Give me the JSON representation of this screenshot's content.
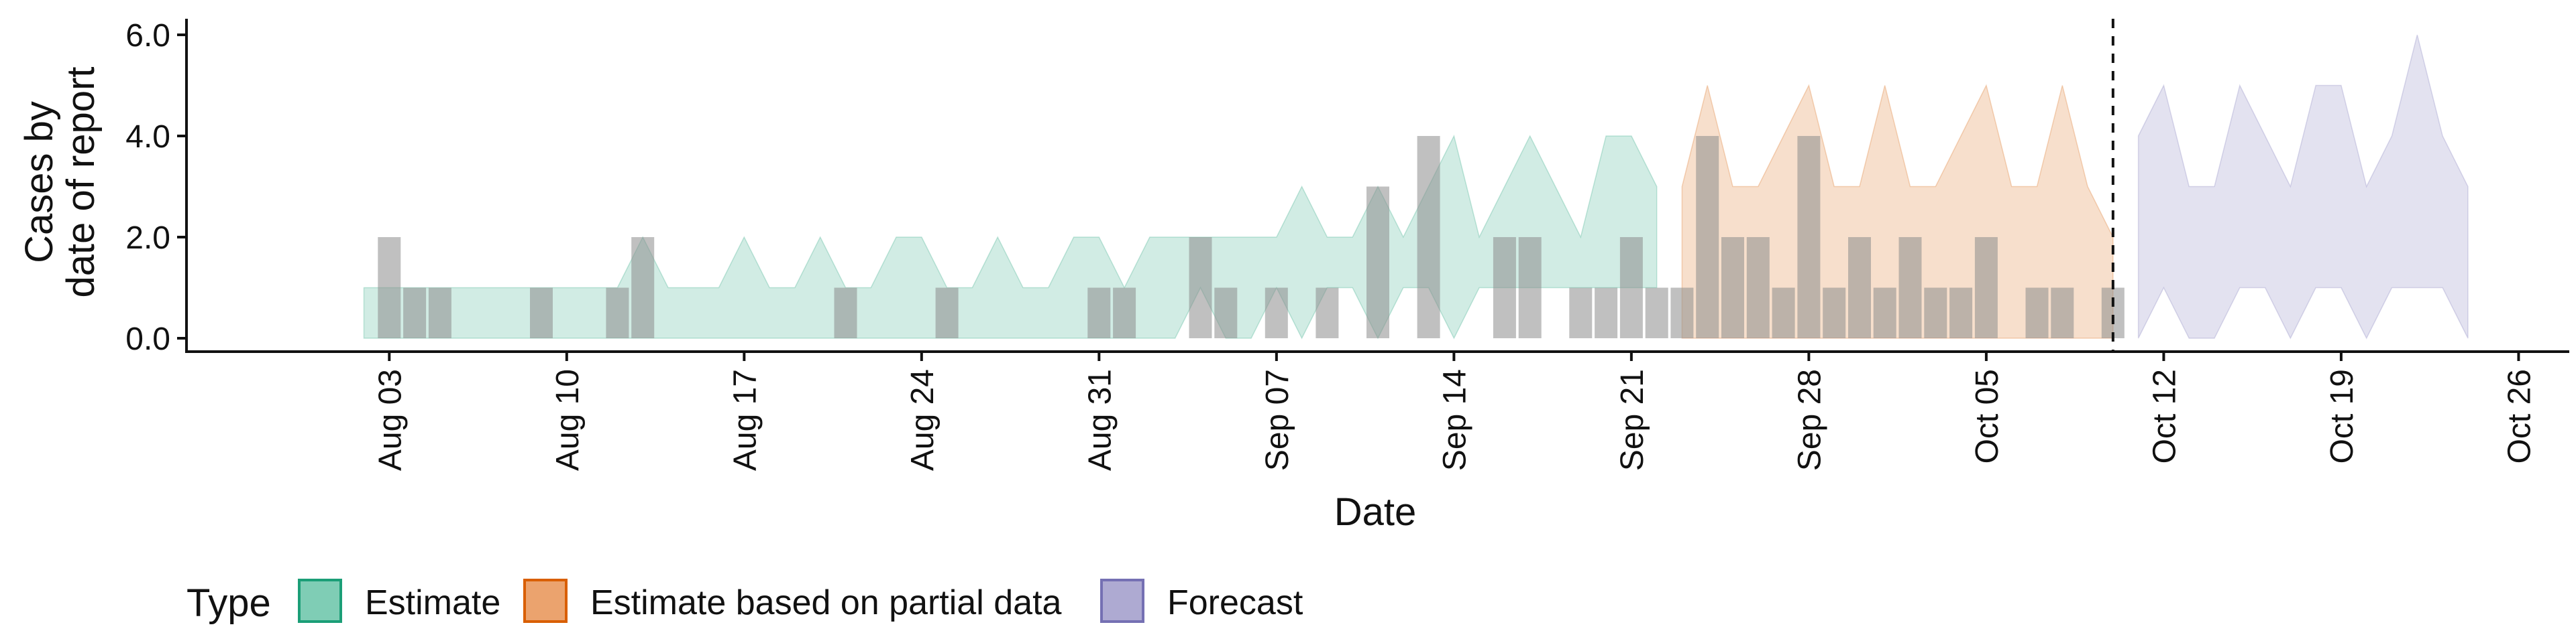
{
  "chart_data": {
    "type": "area",
    "xlabel": "Date",
    "ylabel_lines": [
      "Cases by",
      "date of report"
    ],
    "y_ticks": [
      0,
      2,
      4,
      6
    ],
    "y_tick_labels": [
      "0.0",
      "2.0",
      "4.0",
      "6.0"
    ],
    "ylim": [
      0,
      6.3
    ],
    "xlim": [
      "2020-07-26",
      "2020-10-28"
    ],
    "x_ticks": [
      "2020-08-03",
      "2020-08-10",
      "2020-08-17",
      "2020-08-24",
      "2020-08-31",
      "2020-09-07",
      "2020-09-14",
      "2020-09-21",
      "2020-09-28",
      "2020-10-05",
      "2020-10-12",
      "2020-10-19",
      "2020-10-26"
    ],
    "x_tick_labels": [
      "Aug 03",
      "Aug 10",
      "Aug 17",
      "Aug 24",
      "Aug 31",
      "Sep 07",
      "Sep 14",
      "Sep 21",
      "Sep 28",
      "Oct 05",
      "Oct 12",
      "Oct 19",
      "Oct 26"
    ],
    "forecast_date": "2020-10-10",
    "legend": {
      "title": "Type",
      "placement": "bottom-left",
      "items": [
        {
          "label": "Estimate",
          "fill": "#7fcdb5",
          "stroke": "#1b9e77"
        },
        {
          "label": "Estimate based on partial data",
          "fill": "#eba36e",
          "stroke": "#d95f02"
        },
        {
          "label": "Forecast",
          "fill": "#aeaad2",
          "stroke": "#7570b3"
        }
      ]
    },
    "colors": {
      "estimate": "#1b9e77",
      "partial": "#d95f02",
      "forecast": "#7570b3",
      "bars": "#8c8c8c"
    },
    "observed_cases": {
      "dates": [
        "2020-08-03",
        "2020-08-04",
        "2020-08-05",
        "2020-08-09",
        "2020-08-12",
        "2020-08-13",
        "2020-08-21",
        "2020-08-25",
        "2020-08-31",
        "2020-09-01",
        "2020-09-04",
        "2020-09-05",
        "2020-09-07",
        "2020-09-09",
        "2020-09-11",
        "2020-09-13",
        "2020-09-16",
        "2020-09-17",
        "2020-09-19",
        "2020-09-20",
        "2020-09-21",
        "2020-09-22",
        "2020-09-23",
        "2020-09-24",
        "2020-09-25",
        "2020-09-26",
        "2020-09-27",
        "2020-09-28",
        "2020-09-29",
        "2020-09-30",
        "2020-10-01",
        "2020-10-02",
        "2020-10-03",
        "2020-10-04",
        "2020-10-05",
        "2020-10-07",
        "2020-10-08",
        "2020-10-10"
      ],
      "values": [
        2,
        1,
        1,
        1,
        1,
        2,
        1,
        1,
        1,
        1,
        2,
        1,
        1,
        1,
        3,
        4,
        2,
        2,
        1,
        1,
        2,
        1,
        1,
        4,
        2,
        2,
        1,
        4,
        1,
        2,
        1,
        2,
        1,
        1,
        2,
        1,
        1,
        1
      ]
    },
    "series": [
      {
        "name": "Estimate",
        "dates": [
          "2020-08-02",
          "2020-08-03",
          "2020-08-04",
          "2020-08-05",
          "2020-08-06",
          "2020-08-07",
          "2020-08-08",
          "2020-08-09",
          "2020-08-10",
          "2020-08-11",
          "2020-08-12",
          "2020-08-13",
          "2020-08-14",
          "2020-08-15",
          "2020-08-16",
          "2020-08-17",
          "2020-08-18",
          "2020-08-19",
          "2020-08-20",
          "2020-08-21",
          "2020-08-22",
          "2020-08-23",
          "2020-08-24",
          "2020-08-25",
          "2020-08-26",
          "2020-08-27",
          "2020-08-28",
          "2020-08-29",
          "2020-08-30",
          "2020-08-31",
          "2020-09-01",
          "2020-09-02",
          "2020-09-03",
          "2020-09-04",
          "2020-09-05",
          "2020-09-06",
          "2020-09-07",
          "2020-09-08",
          "2020-09-09",
          "2020-09-10",
          "2020-09-11",
          "2020-09-12",
          "2020-09-13",
          "2020-09-14",
          "2020-09-15",
          "2020-09-16",
          "2020-09-17",
          "2020-09-18",
          "2020-09-19",
          "2020-09-20",
          "2020-09-21",
          "2020-09-22"
        ],
        "lower": [
          0,
          0,
          0,
          0,
          0,
          0,
          0,
          0,
          0,
          0,
          0,
          0,
          0,
          0,
          0,
          0,
          0,
          0,
          0,
          0,
          0,
          0,
          0,
          0,
          0,
          0,
          0,
          0,
          0,
          0,
          0,
          0,
          0,
          1,
          0,
          0,
          1,
          0,
          1,
          1,
          0,
          1,
          1,
          0,
          1,
          1,
          1,
          1,
          1,
          1,
          1,
          1
        ],
        "upper": [
          1,
          1,
          1,
          1,
          1,
          1,
          1,
          1,
          1,
          1,
          1,
          2,
          1,
          1,
          1,
          2,
          1,
          1,
          2,
          1,
          1,
          2,
          2,
          1,
          1,
          2,
          1,
          1,
          2,
          2,
          1,
          2,
          2,
          2,
          2,
          2,
          2,
          3,
          2,
          2,
          3,
          2,
          3,
          4,
          2,
          3,
          4,
          3,
          2,
          4,
          4,
          3
        ]
      },
      {
        "name": "Estimate based on partial data",
        "dates": [
          "2020-09-23",
          "2020-09-24",
          "2020-09-25",
          "2020-09-26",
          "2020-09-27",
          "2020-09-28",
          "2020-09-29",
          "2020-09-30",
          "2020-10-01",
          "2020-10-02",
          "2020-10-03",
          "2020-10-04",
          "2020-10-05",
          "2020-10-06",
          "2020-10-07",
          "2020-10-08",
          "2020-10-09",
          "2020-10-10"
        ],
        "lower": [
          0,
          0,
          0,
          0,
          0,
          0,
          0,
          0,
          0,
          0,
          0,
          0,
          0,
          0,
          0,
          0,
          0,
          0
        ],
        "upper": [
          3,
          5,
          3,
          3,
          4,
          5,
          3,
          3,
          5,
          3,
          3,
          4,
          5,
          3,
          3,
          5,
          3,
          2
        ]
      },
      {
        "name": "Forecast",
        "dates": [
          "2020-10-11",
          "2020-10-12",
          "2020-10-13",
          "2020-10-14",
          "2020-10-15",
          "2020-10-16",
          "2020-10-17",
          "2020-10-18",
          "2020-10-19",
          "2020-10-20",
          "2020-10-21",
          "2020-10-22",
          "2020-10-23",
          "2020-10-24"
        ],
        "lower": [
          0,
          1,
          0,
          0,
          1,
          1,
          0,
          1,
          1,
          0,
          1,
          1,
          1,
          0
        ],
        "upper": [
          4,
          5,
          3,
          3,
          5,
          4,
          3,
          5,
          5,
          3,
          4,
          6,
          4,
          3
        ]
      }
    ]
  }
}
